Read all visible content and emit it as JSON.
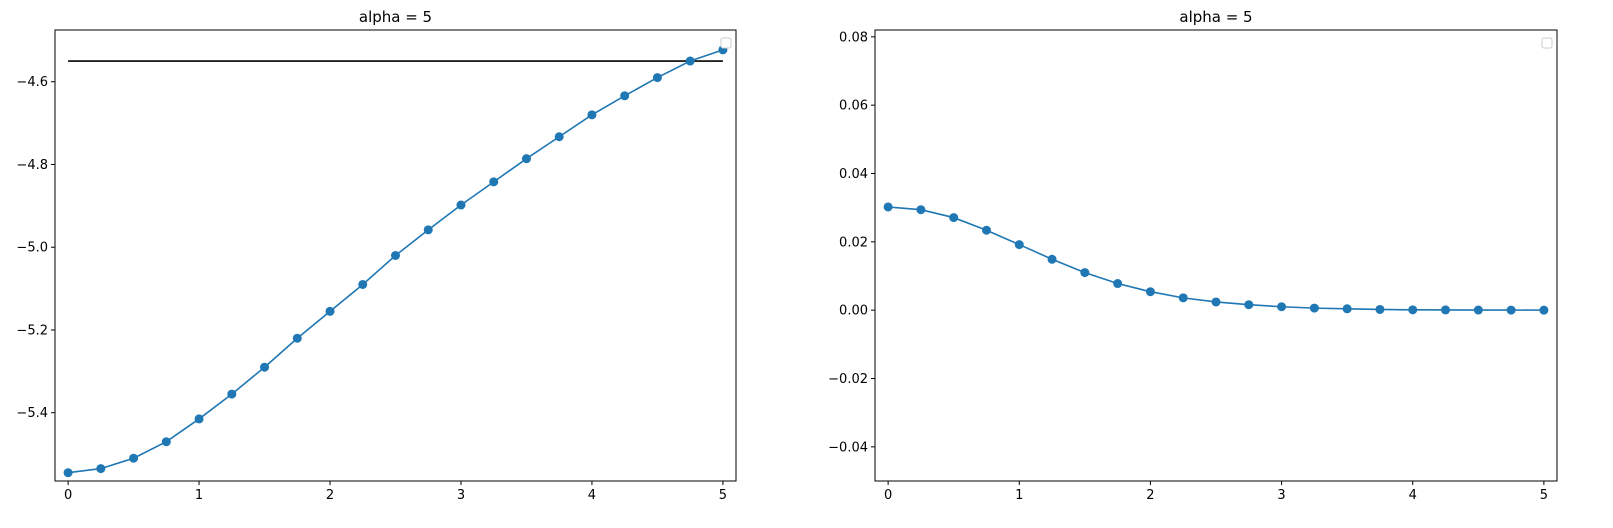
{
  "chart_data": [
    {
      "type": "line",
      "title": "alpha = 5",
      "xlabel": "",
      "ylabel": "",
      "xlim": [
        -0.1,
        5.1
      ],
      "ylim": [
        -5.565,
        -4.475
      ],
      "xticks": [
        0,
        1,
        2,
        3,
        4,
        5
      ],
      "xtick_labels": [
        "0",
        "1",
        "2",
        "3",
        "4",
        "5"
      ],
      "yticks": [
        -5.4,
        -5.2,
        -5.0,
        -4.8,
        -4.6
      ],
      "ytick_labels": [
        "−5.4",
        "−5.2",
        "−5.0",
        "−4.8",
        "−4.6"
      ],
      "grid": false,
      "legend": "top-right, empty",
      "series": [
        {
          "color": "#1f77b4",
          "marker": "circle",
          "x": [
            0,
            0.25,
            0.5,
            0.75,
            1,
            1.25,
            1.5,
            1.75,
            2,
            2.25,
            2.5,
            2.75,
            3,
            3.25,
            3.5,
            3.75,
            4,
            4.25,
            4.5,
            4.75,
            5
          ],
          "y": [
            -5.545,
            -5.535,
            -5.51,
            -5.47,
            -5.415,
            -5.355,
            -5.29,
            -5.22,
            -5.155,
            -5.09,
            -5.02,
            -4.958,
            -4.898,
            -4.842,
            -4.786,
            -4.733,
            -4.68,
            -4.634,
            -4.59,
            -4.55,
            -4.523
          ]
        }
      ],
      "hlines": [
        {
          "y": -4.55,
          "xmin": 0,
          "xmax": 5,
          "color": "#000000"
        }
      ]
    },
    {
      "type": "line",
      "title": "alpha = 5",
      "xlabel": "",
      "ylabel": "",
      "xlim": [
        -0.1,
        5.1
      ],
      "ylim": [
        -0.05,
        0.082
      ],
      "xticks": [
        0,
        1,
        2,
        3,
        4,
        5
      ],
      "xtick_labels": [
        "0",
        "1",
        "2",
        "3",
        "4",
        "5"
      ],
      "yticks": [
        -0.04,
        -0.02,
        0.0,
        0.02,
        0.04,
        0.06,
        0.08
      ],
      "ytick_labels": [
        "−0.04",
        "−0.02",
        "0.00",
        "0.02",
        "0.04",
        "0.06",
        "0.08"
      ],
      "grid": false,
      "legend": "top-right, empty",
      "series": [
        {
          "color": "#1f77b4",
          "marker": "circle",
          "x": [
            0,
            0.25,
            0.5,
            0.75,
            1,
            1.25,
            1.5,
            1.75,
            2,
            2.25,
            2.5,
            2.75,
            3,
            3.25,
            3.5,
            3.75,
            4,
            4.25,
            4.5,
            4.75,
            5
          ],
          "y": [
            0.0302,
            0.0294,
            0.0271,
            0.0234,
            0.0192,
            0.0149,
            0.011,
            0.0078,
            0.0054,
            0.0036,
            0.0024,
            0.0016,
            0.001,
            0.0006,
            0.0004,
            0.0002,
            0.0001,
            7e-05,
            4e-05,
            2e-05,
            1e-05
          ]
        }
      ],
      "hlines": []
    }
  ]
}
